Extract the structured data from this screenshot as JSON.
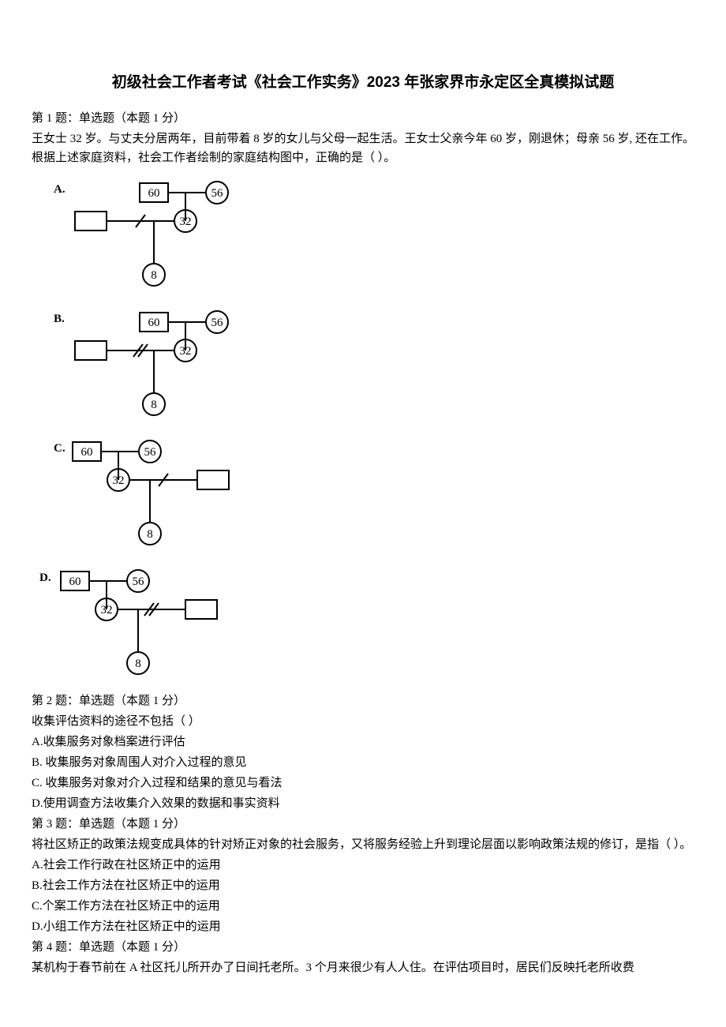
{
  "title": "初级社会工作者考试《社会工作实务》2023 年张家界市永定区全真模拟试题",
  "q1": {
    "head": "第 1 题：单选题（本题 1 分）",
    "body": "王女士 32 岁。与丈夫分居两年，目前带着 8 岁的女儿与父母一起生活。王女士父亲今年 60 岁，刚退休；母亲 56 岁, 还在工作。根据上述家庭资料，社会工作者绘制的家庭结构图中，正确的是（ ）。"
  },
  "diagramsA_D": {
    "letters": {
      "A": "A.",
      "B": "B.",
      "C": "C.",
      "D": "D."
    },
    "vals": {
      "father": "60",
      "mother": "56",
      "wife": "32",
      "daughter": "8"
    },
    "style": {
      "stroke": "#000000",
      "strokeWidth": 2,
      "strokeHeavy": 3,
      "fontSize": 15,
      "bg": "#ffffff"
    }
  },
  "q2": {
    "head": "第 2 题：单选题（本题 1 分）",
    "body": "收集评估资料的途径不包括（ ）",
    "optA": "A.收集服务对象档案进行评估",
    "optB": "B. 收集服务对象周围人对介入过程的意见",
    "optC": "C. 收集服务对象对介入过程和结果的意见与看法",
    "optD": "D.使用调查方法收集介入效果的数据和事实资料"
  },
  "q3": {
    "head": "第 3 题：单选题（本题 1 分）",
    "body": "将社区矫正的政策法规变成具体的针对矫正对象的社会服务，又将服务经验上升到理论层面以影响政策法规的修订，是指（ ）。",
    "optA": "A.社会工作行政在社区矫正中的运用",
    "optB": "B.社会工作方法在社区矫正中的运用",
    "optC": "C.个案工作方法在社区矫正中的运用",
    "optD": "D.小组工作方法在社区矫正中的运用"
  },
  "q4": {
    "head": "第 4 题：单选题（本题 1 分）",
    "body": "某机构于春节前在 A 社区托儿所开办了日间托老所。3 个月来很少有人人住。在评估项目时，居民们反映托老所收费"
  }
}
